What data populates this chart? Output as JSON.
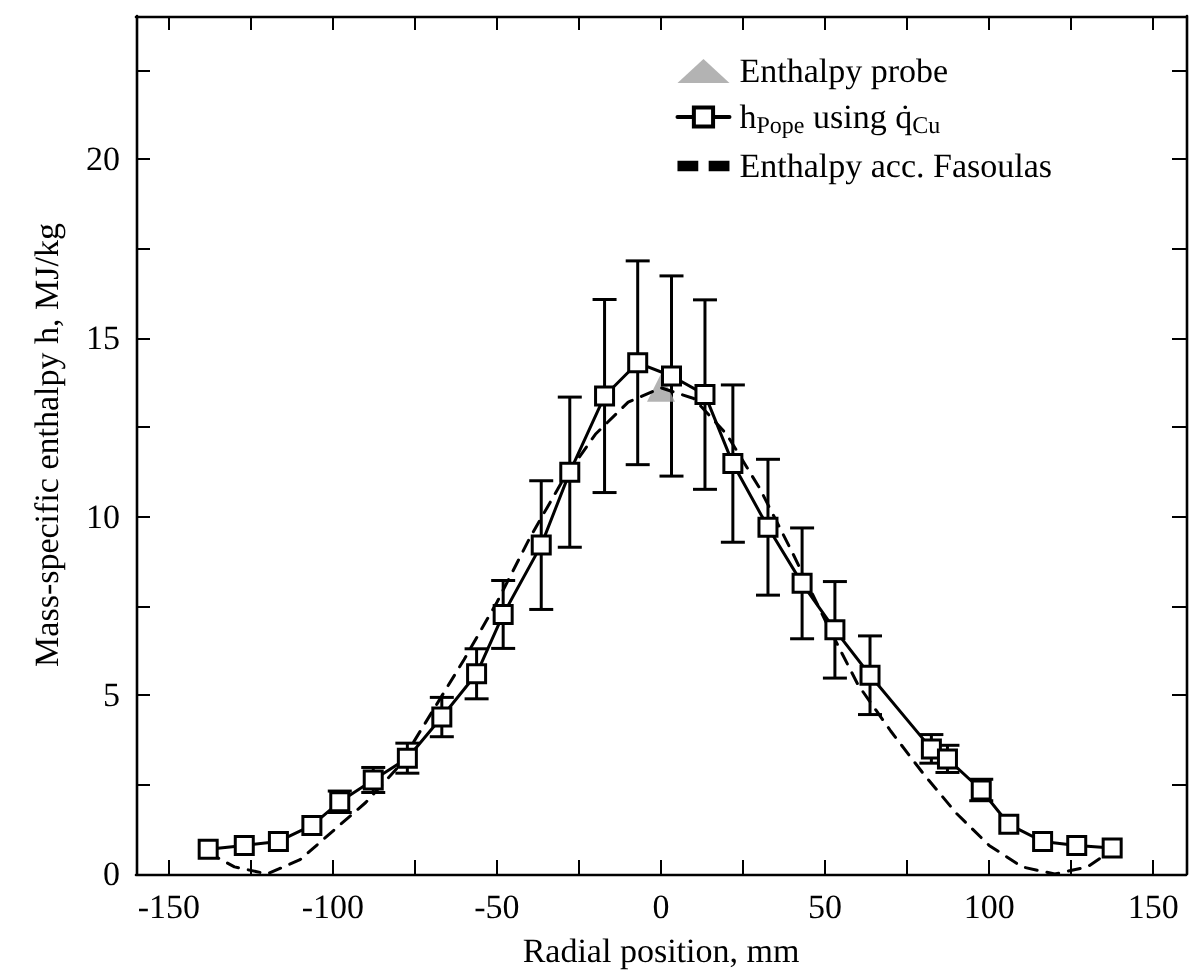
{
  "chart_data": {
    "type": "line",
    "xlabel": "Radial position, mm",
    "ylabel": "Mass-specific enthalpy h, MJ/kg",
    "xlim": [
      -160,
      160
    ],
    "xticks": [
      -150,
      {
        "value": -125,
        "label": null
      },
      -100,
      {
        "value": -75,
        "label": null
      },
      -50,
      {
        "value": -25,
        "label": null
      },
      0,
      {
        "value": 25,
        "label": null
      },
      50,
      {
        "value": 75,
        "label": null
      },
      100,
      {
        "value": 125,
        "label": null
      },
      150
    ],
    "ylim": [
      0,
      24
    ],
    "yticks": [
      0,
      {
        "value": 2.5,
        "label": null
      },
      5,
      {
        "value": 7.5,
        "label": null
      },
      10,
      {
        "value": 12.5,
        "label": null
      },
      15,
      {
        "value": 17.5,
        "label": null
      },
      20,
      {
        "value": 22.5,
        "label": null
      }
    ],
    "grid": false,
    "legend": "top right",
    "series": [
      {
        "name": "Enthalpy probe",
        "type": "scatter",
        "marker": "triangle",
        "color": "#a0a0a0",
        "x": [
          0
        ],
        "values": [
          13.6
        ]
      },
      {
        "name": "h$_{Pope}$ using q̇$_{Cu}$",
        "marker": "square",
        "line_style": "solid",
        "color": "#000000",
        "x": [
          -138,
          -127,
          -116.6,
          -106.4,
          -97.9,
          -87.7,
          -77.3,
          -66.8,
          -56.2,
          -48.1,
          -36.5,
          -27.8,
          -17.2,
          -7.1,
          3.2,
          13.4,
          21.9,
          32.6,
          43,
          53,
          63.7,
          82.4,
          87.3,
          97.6,
          106,
          116.3,
          126.7,
          137.5
        ],
        "values": [
          0.69,
          0.8,
          0.91,
          1.36,
          2.02,
          2.63,
          3.24,
          4.39,
          5.6,
          7.26,
          9.2,
          11.24,
          13.37,
          14.3,
          13.93,
          13.41,
          11.48,
          9.7,
          8.13,
          6.83,
          5.56,
          3.5,
          3.22,
          2.35,
          1.39,
          0.91,
          0.8,
          0.73
        ],
        "errors": [
          null,
          null,
          null,
          null,
          0.3,
          0.35,
          0.42,
          0.55,
          0.7,
          0.95,
          1.8,
          2.1,
          2.7,
          2.85,
          2.8,
          2.65,
          2.2,
          1.9,
          1.55,
          1.35,
          1.1,
          0.4,
          0.38,
          0.3,
          null,
          null,
          null,
          null
        ]
      },
      {
        "name": "Enthalpy acc. Fasoulas",
        "marker": "none",
        "line_style": "dashed",
        "color": "#000000",
        "x": [
          -138,
          -130,
          -120,
          -110,
          -100,
          -90,
          -80,
          -70,
          -60,
          -50,
          -40,
          -30,
          -20,
          -10,
          0,
          10,
          20,
          30,
          40,
          50,
          60,
          70,
          80,
          90,
          100,
          110,
          120,
          130,
          138
        ],
        "values": [
          0.6,
          0.2,
          0,
          0.4,
          1.2,
          2.0,
          3.0,
          4.5,
          6.0,
          7.6,
          9.4,
          11.0,
          12.3,
          13.2,
          13.6,
          13.3,
          12.3,
          10.8,
          9.0,
          7.1,
          5.3,
          4.0,
          2.8,
          1.7,
          0.8,
          0.2,
          0,
          0.2,
          0.7
        ]
      }
    ]
  }
}
